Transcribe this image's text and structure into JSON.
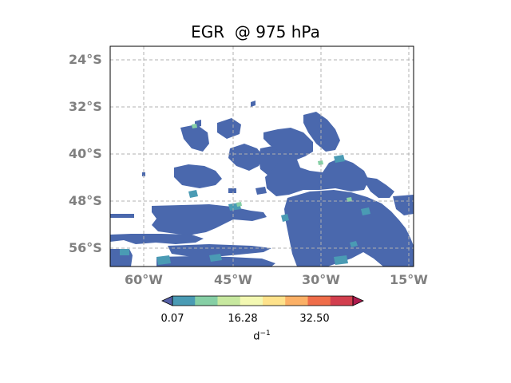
{
  "title": "EGR  @ 975 hPa",
  "map": {
    "lat_ticks": [
      "24°S",
      "32°S",
      "40°S",
      "48°S",
      "56°S"
    ],
    "lon_ticks": [
      "60°W",
      "45°W",
      "30°W",
      "15°W"
    ],
    "grid": true,
    "grid_style": "dashed",
    "gridline_color": "#b0b0b0",
    "land_fill_color": "#4a68ad",
    "background_color": "#ffffff"
  },
  "colorbar": {
    "orientation": "horizontal",
    "extend": "both",
    "colors": [
      "#5560a8",
      "#4a9bb4",
      "#86cfa5",
      "#c7e89f",
      "#f3f8b2",
      "#fee28b",
      "#fbb066",
      "#ef6d4a",
      "#d23f4e",
      "#ae1b4e"
    ],
    "tick_labels": [
      "0.07",
      "16.28",
      "32.50"
    ],
    "units_base": "d",
    "units_exponent": "−1"
  }
}
